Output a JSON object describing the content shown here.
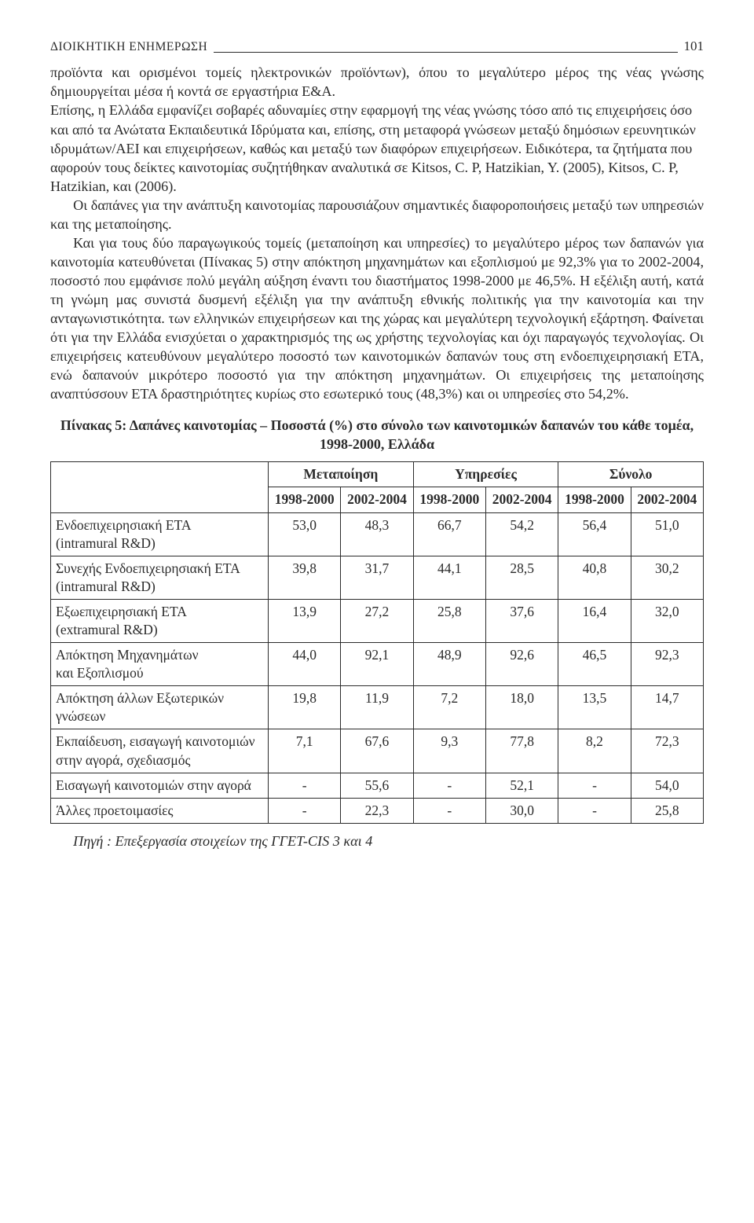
{
  "header": {
    "running_head": "ΔIOIKHTIKH ENHMEPΩΣH",
    "page_number": "101"
  },
  "paragraphs": {
    "p1": "προϊόντα και ορισμένοι τομείς ηλεκτρονικών προϊόντων), όπου το μεγαλύτερο μέρος της νέας γνώσης δημιουργείται μέσα ή κοντά σε εργαστήρια Ε&Α.",
    "p2": "Επίσης, η Ελλάδα εμφανίζει σοβαρές αδυναμίες στην εφαρμογή της νέας γνώσης τόσο από τις επιχειρήσεις όσο και από τα Ανώτατα Εκπαιδευτικά Ιδρύματα και, επίσης, στη μεταφορά γνώσεων μεταξύ δημόσιων ερευνητικών ιδρυμάτων/ΑΕΙ και επιχειρήσεων, καθώς και μεταξύ των διαφόρων επιχειρήσεων. Ειδικότερα, τα ζητήματα που αφορούν τους δείκτες καινοτομίας συζητήθηκαν αναλυτικά σε Kitsos, C. P, Hatzikian, Y. (2005), Kitsos, C. P, Hatzikian, και (2006).",
    "p3": "Οι δαπάνες για την ανάπτυξη καινοτομίας παρουσιάζουν σημαντικές διαφοροποιήσεις μεταξύ των υπηρεσιών και της μεταποίησης.",
    "p4": "Και για τους δύο παραγωγικούς τομείς (μεταποίηση και υπηρεσίες) το μεγαλύτερο μέρος των δαπανών για καινοτομία κατευθύνεται (Πίνακας 5) στην απόκτηση μηχανημάτων και εξοπλισμού με 92,3% για το 2002-2004, ποσοστό που εμφάνισε πολύ μεγάλη αύξηση έναντι του διαστήματος 1998-2000 με 46,5%. Η εξέλιξη αυτή, κατά τη γνώμη μας συνιστά δυσμενή εξέλιξη για την ανάπτυξη εθνικής πολιτικής για την καινοτομία και την ανταγωνιστικότητα. των ελληνικών επιχειρήσεων και της χώρας και μεγαλύτερη τεχνολογική εξάρτηση. Φαίνεται ότι για την Ελλάδα ενισχύεται ο χαρακτηρισμός της ως χρήστης τεχνολογίας και όχι παραγωγός τεχνολογίας. Οι επιχειρήσεις κατευθύνουν  μεγαλύτερο ποσοστό των καινοτομικών δαπανών τους στη ενδοεπιχειρησιακή ΕΤΑ, ενώ δαπανούν μικρότερο ποσοστό  για την απόκτηση μηχανημάτων. Οι επιχειρήσεις της μεταποίησης αναπτύσσουν ΕΤΑ δραστηριότητες κυρίως στο εσωτερικό τους (48,3%) και οι υπηρεσίες στο 54,2%."
  },
  "table": {
    "title": "Πίνακας 5: Δαπάνες καινοτομίας – Ποσοστά  (%) στο σύνολο των καινοτομικών δαπανών του κάθε τομέα, 1998-2000, Ελλάδα",
    "group_headers": [
      "Μεταποίηση",
      "Υπηρεσίες",
      "Σύνολο"
    ],
    "sub_headers": [
      "1998-2000",
      "2002-2004",
      "1998-2000",
      "2002-2004",
      "1998-2000",
      "2002-2004"
    ],
    "rows": [
      {
        "label_a": "Ενδοεπιχειρησιακή ΕΤΑ",
        "label_b": "(intramural R&D)",
        "v": [
          "53,0",
          "48,3",
          "66,7",
          "54,2",
          "56,4",
          "51,0"
        ]
      },
      {
        "label_a": "Συνεχής Ενδοεπιχειρησιακή ΕΤΑ",
        "label_b": "(intramural R&D)",
        "v": [
          "39,8",
          "31,7",
          "44,1",
          "28,5",
          "40,8",
          "30,2"
        ]
      },
      {
        "label_a": "Εξωεπιχειρησιακή ΕΤΑ",
        "label_b": "(extramural R&D)",
        "v": [
          "13,9",
          "27,2",
          "25,8",
          "37,6",
          "16,4",
          "32,0"
        ]
      },
      {
        "label_a": "Απόκτηση Μηχανημάτων",
        "label_b": "και  Εξοπλισμού",
        "v": [
          "44,0",
          "92,1",
          "48,9",
          "92,6",
          "46,5",
          "92,3"
        ]
      },
      {
        "label_a": "Απόκτηση άλλων Εξωτερικών",
        "label_b": "γνώσεων",
        "v": [
          "19,8",
          "11,9",
          "7,2",
          "18,0",
          "13,5",
          "14,7"
        ]
      },
      {
        "label_a": "Εκπαίδευση, εισαγωγή καινοτομιών",
        "label_b": "στην αγορά, σχεδιασμός",
        "v": [
          "7,1",
          "67,6",
          "9,3",
          "77,8",
          "8,2",
          "72,3"
        ]
      },
      {
        "label_a": "Εισαγωγή καινοτομιών στην αγορά",
        "label_b": "",
        "v": [
          "-",
          "55,6",
          "-",
          "52,1",
          "-",
          "54,0"
        ]
      },
      {
        "label_a": "Άλλες προετοιμασίες",
        "label_b": "",
        "v": [
          "-",
          "22,3",
          "-",
          "30,0",
          "-",
          "25,8"
        ]
      }
    ],
    "source": "Πηγή : Επεξεργασία στοιχείων της ΓΓΕΤ-CIS 3 και 4"
  }
}
